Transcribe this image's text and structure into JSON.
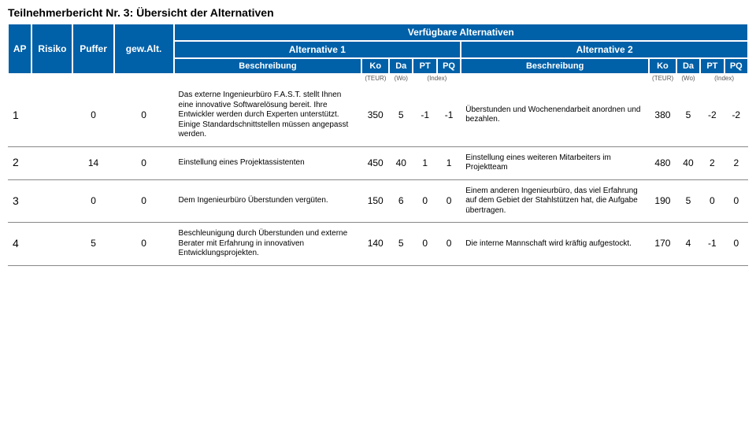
{
  "colors": {
    "header_bg": "#0060a8",
    "header_fg": "#ffffff",
    "row_sep": "#888888",
    "text": "#000000",
    "unit_text": "#555555",
    "background": "#ffffff"
  },
  "title": "Teilnehmerbericht Nr. 3: Übersicht der Alternativen",
  "headers": {
    "ap": "AP",
    "risiko": "Risiko",
    "puffer": "Puffer",
    "gewalt": "gew.Alt.",
    "verf_alt": "Verfügbare Alternativen",
    "alt1": "Alternative 1",
    "alt2": "Alternative 2",
    "beschreibung": "Beschreibung",
    "ko": "Ko",
    "da": "Da",
    "pt": "PT",
    "pq": "PQ"
  },
  "units": {
    "ko": "(TEUR)",
    "da": "(Wo)",
    "idx": "(Index)"
  },
  "rows": [
    {
      "ap": "1",
      "risiko": "",
      "puffer": "0",
      "gewalt": "0",
      "a1": {
        "desc": "Das externe Ingenieurbüro F.A.S.T. stellt Ihnen eine innovative Softwarelösung bereit. Ihre Entwickler werden durch Experten unterstützt. Einige Standardschnittstellen müssen angepasst werden.",
        "ko": "350",
        "da": "5",
        "pt": "-1",
        "pq": "-1"
      },
      "a2": {
        "desc": "Überstunden und Wochenendarbeit anordnen und bezahlen.",
        "ko": "380",
        "da": "5",
        "pt": "-2",
        "pq": "-2"
      }
    },
    {
      "ap": "2",
      "risiko": "",
      "puffer": "14",
      "gewalt": "0",
      "a1": {
        "desc": "Einstellung eines Projektassistenten",
        "ko": "450",
        "da": "40",
        "pt": "1",
        "pq": "1"
      },
      "a2": {
        "desc": "Einstellung eines weiteren Mitarbeiters im Projektteam",
        "ko": "480",
        "da": "40",
        "pt": "2",
        "pq": "2"
      }
    },
    {
      "ap": "3",
      "risiko": "",
      "puffer": "0",
      "gewalt": "0",
      "a1": {
        "desc": "Dem Ingenieurbüro Überstunden vergüten.",
        "ko": "150",
        "da": "6",
        "pt": "0",
        "pq": "0"
      },
      "a2": {
        "desc": "Einem anderen Ingenieurbüro, das viel Erfahrung auf dem Gebiet der Stahlstützen hat, die Aufgabe übertragen.",
        "ko": "190",
        "da": "5",
        "pt": "0",
        "pq": "0"
      }
    },
    {
      "ap": "4",
      "risiko": "",
      "puffer": "5",
      "gewalt": "0",
      "a1": {
        "desc": "Beschleunigung durch Überstunden und externe Berater mit Erfahrung in innovativen Entwicklungsprojekten.",
        "ko": "140",
        "da": "5",
        "pt": "0",
        "pq": "0"
      },
      "a2": {
        "desc": "Die interne Mannschaft wird kräftig aufgestockt.",
        "ko": "170",
        "da": "4",
        "pt": "-1",
        "pq": "0"
      }
    }
  ]
}
